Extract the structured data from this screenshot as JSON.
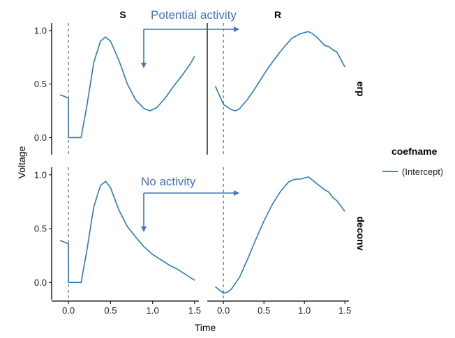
{
  "chart_data": {
    "type": "line",
    "xlabel": "Time",
    "ylabel": "Voltage",
    "xlim": [
      -0.2,
      1.55
    ],
    "ylim": [
      -0.16,
      1.07
    ],
    "x_ticks": [
      0.0,
      0.5,
      1.0,
      1.5
    ],
    "x_tick_labels": [
      "0.0",
      "0.5",
      "1.0",
      "1.5"
    ],
    "y_ticks": [
      0.0,
      0.5,
      1.0
    ],
    "y_tick_labels": [
      "0.0",
      "0.5",
      "1.0"
    ],
    "event_marker_x": 0.0,
    "column_labels": [
      "S",
      "R"
    ],
    "row_labels": [
      "erp",
      "deconv"
    ],
    "line_color": "#2c7bb6",
    "legend": {
      "title": "coefname",
      "entries": [
        "(Intercept)"
      ],
      "placement": "right"
    },
    "annotations": [
      {
        "text": "Potential activity",
        "color": "#4472c4"
      },
      {
        "text": "No activity",
        "color": "#4472c4"
      }
    ],
    "panels": [
      {
        "row": "erp",
        "col": "S",
        "series": [
          {
            "name": "(Intercept)",
            "x": [
              -0.1,
              0.0,
              0.001,
              0.15,
              0.22,
              0.3,
              0.38,
              0.44,
              0.5,
              0.6,
              0.7,
              0.8,
              0.9,
              0.97,
              1.05,
              1.15,
              1.25,
              1.35,
              1.45,
              1.5
            ],
            "y": [
              0.4,
              0.37,
              0.0,
              0.0,
              0.3,
              0.7,
              0.9,
              0.94,
              0.9,
              0.72,
              0.5,
              0.35,
              0.27,
              0.25,
              0.28,
              0.37,
              0.48,
              0.58,
              0.69,
              0.76
            ]
          }
        ]
      },
      {
        "row": "erp",
        "col": "R",
        "series": [
          {
            "name": "(Intercept)",
            "x": [
              -0.1,
              0.0,
              0.1,
              0.15,
              0.2,
              0.3,
              0.4,
              0.5,
              0.6,
              0.7,
              0.8,
              0.85,
              0.9,
              0.95,
              1.0,
              1.05,
              1.1,
              1.15,
              1.2,
              1.25,
              1.3,
              1.35,
              1.4,
              1.45,
              1.5
            ],
            "y": [
              0.48,
              0.31,
              0.26,
              0.25,
              0.27,
              0.36,
              0.47,
              0.59,
              0.7,
              0.8,
              0.89,
              0.93,
              0.95,
              0.97,
              0.98,
              0.99,
              0.97,
              0.94,
              0.9,
              0.86,
              0.85,
              0.82,
              0.8,
              0.73,
              0.66
            ]
          }
        ]
      },
      {
        "row": "deconv",
        "col": "S",
        "series": [
          {
            "name": "(Intercept)",
            "x": [
              -0.1,
              0.0,
              0.001,
              0.15,
              0.22,
              0.3,
              0.38,
              0.44,
              0.5,
              0.6,
              0.7,
              0.8,
              0.9,
              1.0,
              1.1,
              1.2,
              1.3,
              1.4,
              1.5
            ],
            "y": [
              0.39,
              0.36,
              0.0,
              0.0,
              0.3,
              0.7,
              0.9,
              0.94,
              0.88,
              0.67,
              0.52,
              0.42,
              0.33,
              0.26,
              0.21,
              0.16,
              0.12,
              0.07,
              0.02
            ]
          }
        ]
      },
      {
        "row": "deconv",
        "col": "R",
        "series": [
          {
            "name": "(Intercept)",
            "x": [
              -0.1,
              0.0,
              0.05,
              0.1,
              0.2,
              0.3,
              0.4,
              0.5,
              0.6,
              0.7,
              0.8,
              0.85,
              0.9,
              0.95,
              1.0,
              1.05,
              1.1,
              1.15,
              1.2,
              1.25,
              1.3,
              1.35,
              1.4,
              1.45,
              1.5
            ],
            "y": [
              -0.04,
              -0.1,
              -0.09,
              -0.06,
              0.05,
              0.22,
              0.4,
              0.57,
              0.72,
              0.84,
              0.93,
              0.95,
              0.96,
              0.96,
              0.97,
              0.98,
              0.95,
              0.92,
              0.89,
              0.86,
              0.84,
              0.79,
              0.76,
              0.71,
              0.66
            ]
          }
        ]
      }
    ]
  }
}
